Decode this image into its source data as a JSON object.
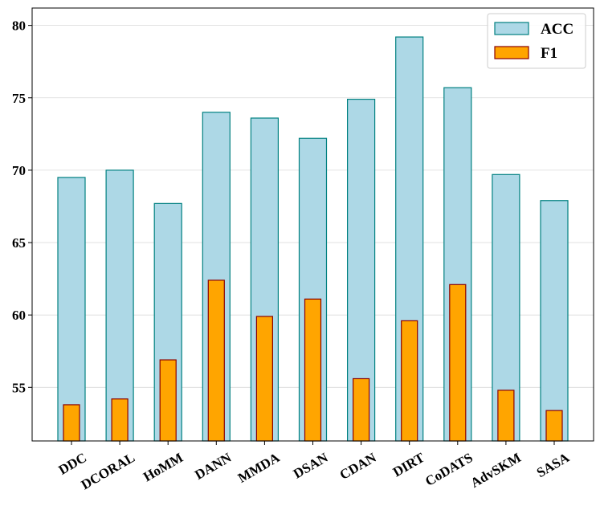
{
  "chart_data": {
    "type": "bar",
    "categories": [
      "DDC",
      "DCORAL",
      "HoMM",
      "DANN",
      "MMDA",
      "DSAN",
      "CDAN",
      "DIRT",
      "CoDATS",
      "AdvSKM",
      "SASA"
    ],
    "series": [
      {
        "name": "ACC",
        "values": [
          69.5,
          70.0,
          67.7,
          74.0,
          73.6,
          72.2,
          74.9,
          79.2,
          75.7,
          69.7,
          67.9
        ],
        "fill": "#add8e6",
        "stroke": "#008080"
      },
      {
        "name": "F1",
        "values": [
          53.8,
          54.2,
          56.9,
          62.4,
          59.9,
          61.1,
          55.6,
          59.6,
          62.1,
          54.8,
          53.4
        ],
        "fill": "#ffa500",
        "stroke": "#8b0000"
      }
    ],
    "yticks": [
      55,
      60,
      65,
      70,
      75,
      80
    ],
    "ylim": [
      51.3,
      81.2
    ],
    "grid": true,
    "legend_position": "top-right",
    "xtick_rotation": -30
  }
}
